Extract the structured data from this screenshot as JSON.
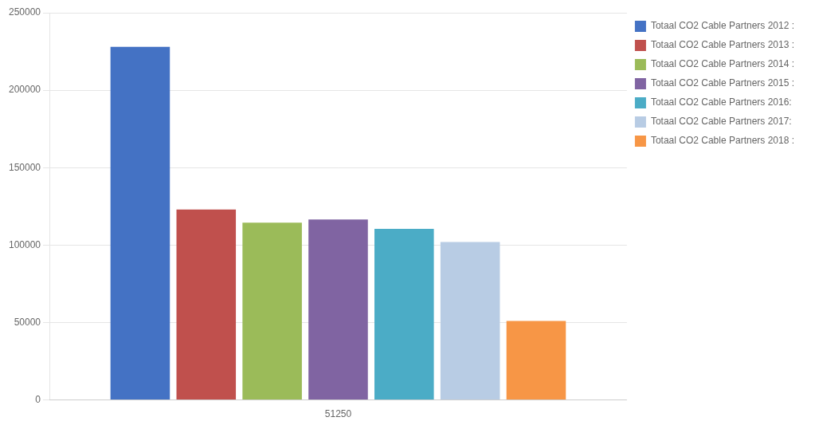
{
  "chart_data": {
    "type": "bar",
    "categories": [
      "51250"
    ],
    "series": [
      {
        "name": "Totaal CO2 Cable Partners 2012 :",
        "color": "#4472C4",
        "values": [
          228000
        ]
      },
      {
        "name": "Totaal CO2 Cable Partners 2013 :",
        "color": "#C0504D",
        "values": [
          123000
        ]
      },
      {
        "name": "Totaal CO2 Cable Partners 2014 :",
        "color": "#9BBB59",
        "values": [
          114500
        ]
      },
      {
        "name": "Totaal CO2 Cable Partners 2015 :",
        "color": "#8064A2",
        "values": [
          116500
        ]
      },
      {
        "name": "Totaal CO2 Cable Partners 2016:",
        "color": "#4BACC6",
        "values": [
          110500
        ]
      },
      {
        "name": "Totaal CO2 Cable Partners 2017:",
        "color": "#B8CCE4",
        "values": [
          102000
        ]
      },
      {
        "name": "Totaal CO2 Cable Partners 2018 :",
        "color": "#F79646",
        "values": [
          51000
        ]
      }
    ],
    "ylim": [
      0,
      250000
    ],
    "yticks": [
      0,
      50000,
      100000,
      150000,
      200000,
      250000
    ],
    "grid": true,
    "legend": "right"
  }
}
